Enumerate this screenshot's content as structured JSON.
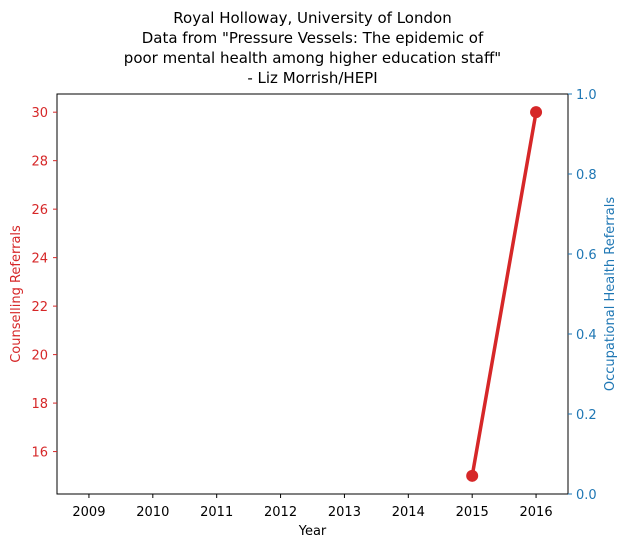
{
  "chart_data": {
    "type": "line",
    "title": [
      "Royal Holloway, University of London",
      "Data from \"Pressure Vessels: The epidemic of",
      "poor mental health among higher education staff\"",
      "- Liz Morrish/HEPI"
    ],
    "xlabel": "Year",
    "x_categories": [
      "2009",
      "2010",
      "2011",
      "2012",
      "2013",
      "2014",
      "2015",
      "2016"
    ],
    "y_left": {
      "label": "Counselling Referrals",
      "color": "#d62728",
      "lim": [
        14.25,
        30.75
      ],
      "ticks": [
        16,
        18,
        20,
        22,
        24,
        26,
        28,
        30
      ]
    },
    "y_right": {
      "label": "Occupational Health Referrals",
      "color": "#1f77b4",
      "lim": [
        0.0,
        1.0
      ],
      "ticks": [
        "0.0",
        "0.2",
        "0.4",
        "0.6",
        "0.8",
        "1.0"
      ]
    },
    "series": [
      {
        "axis": "left",
        "color": "#d62728",
        "x": [
          "2015",
          "2016"
        ],
        "values": [
          15,
          30
        ]
      }
    ]
  }
}
